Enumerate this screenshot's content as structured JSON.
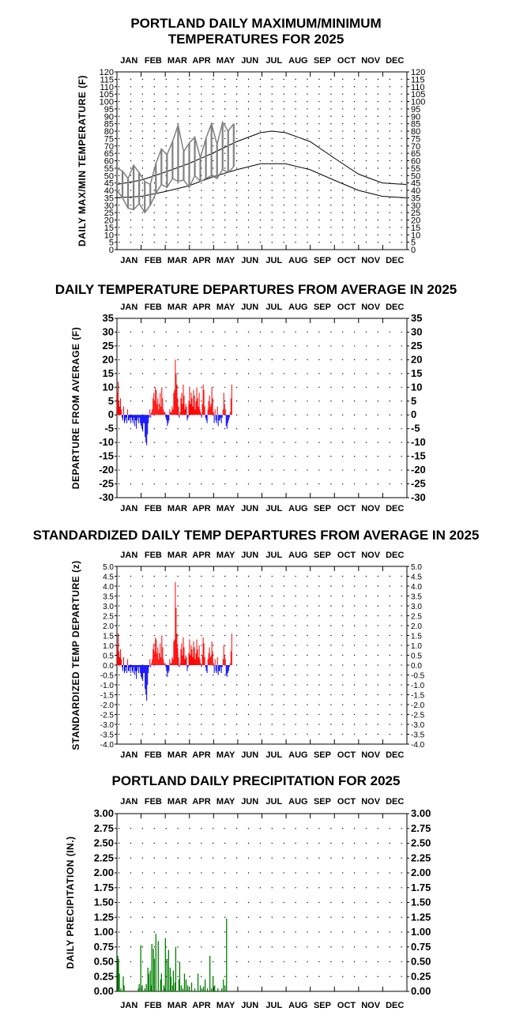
{
  "months": [
    "JAN",
    "FEB",
    "MAR",
    "APR",
    "MAY",
    "JUN",
    "JUL",
    "AUG",
    "SEP",
    "OCT",
    "NOV",
    "DEC"
  ],
  "chart_data": [
    {
      "id": "temps",
      "type": "line",
      "title": "PORTLAND DAILY MAXIMUM/MINIMUM\nTEMPERATURES FOR 2025",
      "ylabel": "DAILY MAX/MIN TEMPERATURE (F)",
      "ylim": [
        0,
        120
      ],
      "ystep": 5,
      "grid": true,
      "series": [
        {
          "id": "normal_max",
          "color": "#000000",
          "x": [
            1,
            32,
            60,
            91,
            121,
            152,
            182,
            196,
            213,
            244,
            274,
            305,
            335,
            365
          ],
          "values": [
            44,
            47,
            52,
            58,
            65,
            73,
            79,
            80,
            79,
            73,
            62,
            51,
            45,
            44
          ]
        },
        {
          "id": "normal_min",
          "color": "#000000",
          "x": [
            1,
            32,
            60,
            91,
            121,
            152,
            182,
            202,
            213,
            244,
            274,
            305,
            335,
            365
          ],
          "values": [
            35,
            36,
            39,
            43,
            49,
            54,
            58,
            58,
            58,
            54,
            47,
            40,
            36,
            35
          ]
        },
        {
          "id": "actual_range",
          "color": "#808080",
          "x": [
            1,
            8,
            15,
            22,
            29,
            36,
            43,
            50,
            57,
            64,
            71,
            78,
            85,
            92,
            99,
            106,
            113,
            120,
            127,
            134,
            141,
            148
          ],
          "max": [
            55,
            53,
            48,
            57,
            52,
            46,
            44,
            58,
            68,
            64,
            73,
            84,
            66,
            72,
            76,
            62,
            75,
            85,
            71,
            86,
            80,
            85
          ],
          "min": [
            40,
            35,
            28,
            27,
            31,
            25,
            30,
            38,
            44,
            42,
            48,
            46,
            47,
            42,
            50,
            46,
            48,
            50,
            48,
            54,
            52,
            56
          ]
        }
      ]
    },
    {
      "id": "departures",
      "type": "bar",
      "title": "DAILY TEMPERATURE DEPARTURES FROM AVERAGE IN 2025",
      "ylabel": "DEPARTURE FROM AVERAGE (F)",
      "ylim": [
        -30,
        35
      ],
      "ystep": 5,
      "grid": true,
      "pos_color": "#ff0000",
      "neg_color": "#0000ff",
      "x_start": 1,
      "values": [
        8,
        12,
        5,
        3,
        6,
        2,
        -1,
        -2,
        3,
        -3,
        -2,
        -1,
        -3,
        2,
        -2,
        -2,
        -1,
        -3,
        -1,
        -2,
        -3,
        -1,
        -4,
        -2,
        -5,
        -2,
        -1,
        -3,
        -1,
        -3,
        -4,
        -5,
        -6,
        -3,
        -3,
        -8,
        -10,
        -11,
        -7,
        -3,
        -1,
        2,
        -1,
        1,
        2,
        6,
        8,
        5,
        10,
        9,
        4,
        6,
        2,
        4,
        8,
        3,
        10,
        6,
        2,
        1,
        1,
        -1,
        -2,
        -4,
        -3,
        -2,
        2,
        1,
        1,
        3,
        2,
        8,
        9,
        20,
        15,
        11,
        6,
        3,
        -1,
        1,
        6,
        8,
        4,
        11,
        7,
        2,
        4,
        3,
        -2,
        -1,
        5,
        10,
        4,
        8,
        6,
        3,
        9,
        7,
        2,
        5,
        10,
        6,
        3,
        8,
        2,
        1,
        -1,
        4,
        11,
        9,
        3,
        -1,
        -2,
        -3,
        2,
        5,
        7,
        3,
        4,
        10,
        6,
        1,
        -3,
        2,
        -2,
        -3,
        3,
        -4,
        -2,
        -2,
        -1,
        -3,
        -1,
        2,
        8,
        4,
        2,
        -4,
        -5,
        -3,
        -2,
        -1,
        1,
        6,
        11
      ]
    },
    {
      "id": "standardized",
      "type": "bar",
      "title": "STANDARDIZED DAILY TEMP DEPARTURES FROM AVERAGE IN 2025",
      "ylabel": "STANDARDIZED TEMP DEPARTURE (z)",
      "ylim": [
        -4.0,
        5.0
      ],
      "ystep": 0.5,
      "grid": true,
      "pos_color": "#ff0000",
      "neg_color": "#0000ff",
      "x_start": 1,
      "values": [
        1.0,
        1.6,
        0.7,
        0.4,
        0.8,
        0.3,
        -0.1,
        -0.3,
        0.4,
        -0.4,
        -0.3,
        -0.1,
        -0.4,
        0.3,
        -0.3,
        -0.3,
        -0.1,
        -0.4,
        -0.1,
        -0.3,
        -0.4,
        -0.1,
        -0.5,
        -0.3,
        -0.7,
        -0.3,
        -0.1,
        -0.4,
        -0.1,
        -0.4,
        -0.6,
        -0.7,
        -0.8,
        -0.4,
        -0.4,
        -1.2,
        -1.5,
        -1.8,
        -1.0,
        -0.4,
        -0.1,
        0.3,
        -0.1,
        0.1,
        0.3,
        0.8,
        1.1,
        0.7,
        1.4,
        1.3,
        0.6,
        0.9,
        0.3,
        0.6,
        1.1,
        0.4,
        1.5,
        0.9,
        0.3,
        0.1,
        0.1,
        -0.1,
        -0.3,
        -0.6,
        -0.4,
        -0.3,
        0.3,
        0.1,
        0.1,
        0.4,
        0.3,
        1.2,
        1.3,
        4.2,
        2.9,
        1.6,
        0.9,
        0.4,
        -0.1,
        0.1,
        0.8,
        1.1,
        0.5,
        1.4,
        0.9,
        0.3,
        0.5,
        0.4,
        -0.3,
        -0.1,
        0.6,
        1.3,
        0.5,
        1.0,
        0.8,
        0.4,
        1.2,
        0.9,
        0.3,
        0.6,
        1.3,
        0.8,
        0.4,
        1.0,
        0.3,
        0.1,
        -0.1,
        0.5,
        1.4,
        1.1,
        0.4,
        -0.1,
        -0.3,
        -0.4,
        0.3,
        0.6,
        0.9,
        0.4,
        0.5,
        1.2,
        0.7,
        0.1,
        -0.4,
        0.3,
        -0.3,
        -0.4,
        0.4,
        -0.5,
        -0.3,
        -0.3,
        -0.1,
        -0.4,
        -0.1,
        0.3,
        1.0,
        0.5,
        0.3,
        -0.5,
        -0.6,
        -0.4,
        -0.3,
        -0.1,
        0.1,
        0.7,
        1.6
      ]
    },
    {
      "id": "precip",
      "type": "bar",
      "title": "PORTLAND DAILY PRECIPITATION FOR 2025",
      "ylabel": "DAILY PRECIPITATION (IN.)",
      "ylim": [
        0,
        3.0
      ],
      "ystep": 0.25,
      "grid": true,
      "color": "#008000",
      "x": [
        2,
        3,
        4,
        6,
        9,
        10,
        28,
        29,
        31,
        33,
        36,
        38,
        40,
        41,
        43,
        44,
        45,
        47,
        48,
        50,
        53,
        56,
        57,
        60,
        61,
        62,
        64,
        66,
        68,
        69,
        71,
        72,
        74,
        75,
        79,
        80,
        82,
        84,
        86,
        88,
        90,
        92,
        95,
        99,
        103,
        106,
        108,
        110,
        112,
        115,
        118,
        120,
        122,
        124,
        128,
        133,
        135,
        137,
        139
      ],
      "values": [
        0.6,
        0.55,
        0.3,
        0.05,
        0.25,
        0.1,
        0.05,
        0.12,
        0.78,
        0.1,
        0.05,
        0.12,
        0.4,
        0.3,
        0.35,
        0.1,
        0.8,
        0.72,
        0.55,
        0.97,
        0.85,
        0.2,
        0.3,
        0.1,
        0.05,
        0.9,
        0.55,
        0.7,
        0.4,
        0.25,
        0.1,
        0.35,
        0.15,
        0.75,
        0.2,
        0.5,
        0.1,
        0.05,
        0.3,
        0.2,
        0.1,
        0.05,
        0.15,
        0.05,
        0.3,
        0.1,
        0.05,
        0.08,
        0.2,
        0.05,
        0.6,
        0.05,
        0.25,
        0.1,
        0.05,
        0.05,
        0.2,
        0.1,
        1.23
      ]
    }
  ]
}
